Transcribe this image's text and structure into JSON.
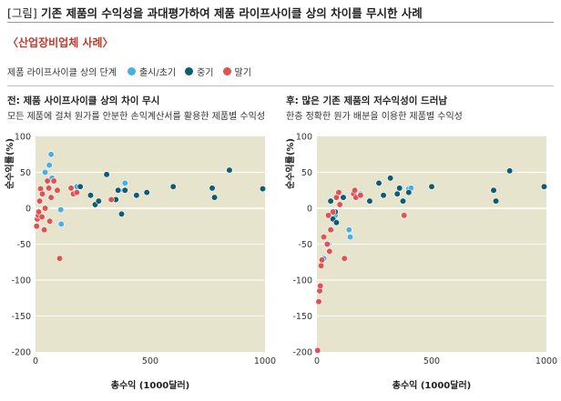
{
  "header": {
    "bracket": "[그림]",
    "title": "기존 제품의 수익성을 과대평가하여 제품 라이프사이클 상의 차이를 무시한 사례",
    "subtitle": "〈산업장비업체 사례〉"
  },
  "legend": {
    "title": "제품 라이프사이클 상의 단계",
    "items": [
      {
        "label": "출시/초기",
        "color": "#4aaee0"
      },
      {
        "label": "중기",
        "color": "#0e5c74"
      },
      {
        "label": "말기",
        "color": "#e05252"
      }
    ]
  },
  "panels": [
    {
      "title": "전: 제품 사이프사이클 상의 차이 무시",
      "desc": "모든 제품에 걸쳐 원가를 안분한 손익계산서를 활용한 제품별 수익성"
    },
    {
      "title": "후: 많은 기존 제품의 저수익성이 드러남",
      "desc": "한층 정확한 원가 배분을 이용한 제품별 수익성"
    }
  ],
  "colors": {
    "plot_bg": "#e7e4cd",
    "grid": "#ffffff"
  },
  "chart_data": [
    {
      "type": "scatter",
      "xlabel": "총수익 (1000달러)",
      "ylabel": "순수익률(%)",
      "xlim": [
        0,
        1000
      ],
      "ylim": [
        -200,
        100
      ],
      "xticks": [
        0,
        500,
        1000
      ],
      "yticks": [
        100,
        50,
        0,
        -50,
        -100,
        -150,
        -200
      ],
      "grid": true,
      "series": [
        {
          "name": "출시/초기",
          "color": "#4aaee0",
          "points": [
            [
              42,
              50
            ],
            [
              60,
              60
            ],
            [
              68,
              75
            ],
            [
              72,
              42
            ],
            [
              110,
              -2
            ],
            [
              112,
              -22
            ],
            [
              180,
              30
            ],
            [
              390,
              35
            ],
            [
              385,
              25
            ]
          ]
        },
        {
          "name": "중기",
          "color": "#0e5c74",
          "points": [
            [
              195,
              30
            ],
            [
              240,
              18
            ],
            [
              260,
              5
            ],
            [
              275,
              10
            ],
            [
              310,
              47
            ],
            [
              350,
              12
            ],
            [
              360,
              25
            ],
            [
              375,
              -8
            ],
            [
              390,
              25
            ],
            [
              440,
              18
            ],
            [
              485,
              22
            ],
            [
              600,
              30
            ],
            [
              770,
              28
            ],
            [
              780,
              15
            ],
            [
              845,
              53
            ],
            [
              990,
              27
            ]
          ]
        },
        {
          "name": "말기",
          "color": "#e05252",
          "points": [
            [
              5,
              -25
            ],
            [
              8,
              -15
            ],
            [
              12,
              -10
            ],
            [
              14,
              -5
            ],
            [
              18,
              10
            ],
            [
              22,
              27
            ],
            [
              28,
              -12
            ],
            [
              30,
              20
            ],
            [
              38,
              -30
            ],
            [
              42,
              0
            ],
            [
              52,
              38
            ],
            [
              58,
              28
            ],
            [
              62,
              -18
            ],
            [
              68,
              15
            ],
            [
              80,
              38
            ],
            [
              95,
              25
            ],
            [
              105,
              -70
            ],
            [
              155,
              28
            ],
            [
              165,
              20
            ],
            [
              180,
              22
            ],
            [
              330,
              12
            ]
          ]
        }
      ]
    },
    {
      "type": "scatter",
      "xlabel": "총수익 (1000달러)",
      "ylabel": "순수익률(%)",
      "xlim": [
        0,
        1000
      ],
      "ylim": [
        -200,
        100
      ],
      "xticks": [
        0,
        500,
        1000
      ],
      "yticks": [
        100,
        50,
        0,
        -50,
        -100,
        -150,
        -200
      ],
      "grid": true,
      "series": [
        {
          "name": "출시/초기",
          "color": "#4aaee0",
          "points": [
            [
              30,
              -70
            ],
            [
              50,
              -50
            ],
            [
              65,
              -30
            ],
            [
              80,
              -10
            ],
            [
              140,
              -30
            ],
            [
              145,
              -40
            ],
            [
              190,
              20
            ],
            [
              400,
              27
            ],
            [
              410,
              28
            ]
          ]
        },
        {
          "name": "중기",
          "color": "#0e5c74",
          "points": [
            [
              60,
              10
            ],
            [
              70,
              -15
            ],
            [
              80,
              -5
            ],
            [
              85,
              -20
            ],
            [
              115,
              15
            ],
            [
              230,
              10
            ],
            [
              270,
              35
            ],
            [
              290,
              18
            ],
            [
              320,
              42
            ],
            [
              350,
              20
            ],
            [
              360,
              28
            ],
            [
              375,
              10
            ],
            [
              400,
              22
            ],
            [
              500,
              30
            ],
            [
              770,
              25
            ],
            [
              780,
              10
            ],
            [
              840,
              52
            ],
            [
              990,
              30
            ]
          ]
        },
        {
          "name": "말기",
          "color": "#e05252",
          "points": [
            [
              3,
              -198
            ],
            [
              8,
              -130
            ],
            [
              12,
              -115
            ],
            [
              15,
              -108
            ],
            [
              18,
              -80
            ],
            [
              22,
              -72
            ],
            [
              30,
              -40
            ],
            [
              45,
              -50
            ],
            [
              50,
              -10
            ],
            [
              55,
              -60
            ],
            [
              60,
              -30
            ],
            [
              70,
              -5
            ],
            [
              85,
              15
            ],
            [
              95,
              22
            ],
            [
              100,
              5
            ],
            [
              120,
              -70
            ],
            [
              160,
              20
            ],
            [
              165,
              25
            ],
            [
              170,
              15
            ],
            [
              190,
              18
            ],
            [
              380,
              -10
            ]
          ]
        }
      ]
    }
  ]
}
